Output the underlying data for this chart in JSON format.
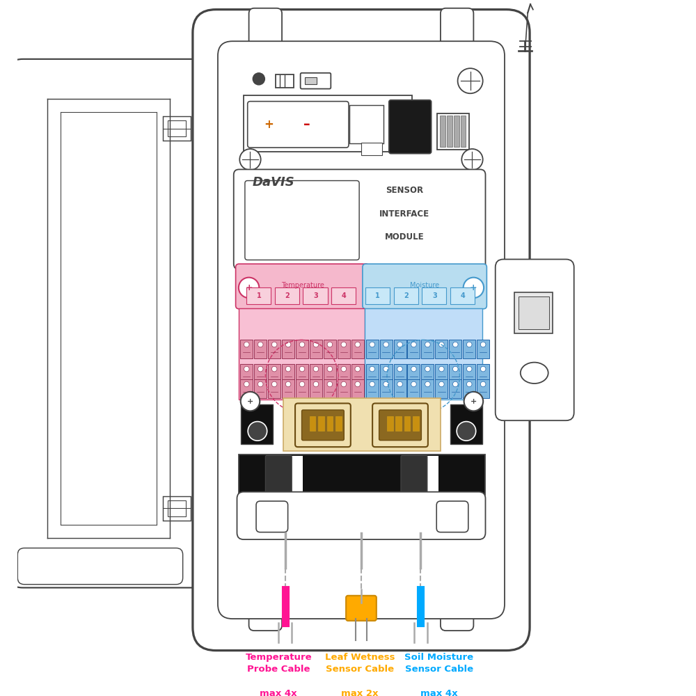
{
  "bg_color": "#ffffff",
  "outline_color": "#444444",
  "pink_color": "#f5b8cc",
  "blue_color": "#b8ddf0",
  "pink_dark": "#cc3366",
  "blue_dark": "#4499cc",
  "orange_color": "#ffaa00",
  "connector_bg": "#f0e0b0",
  "connector_dark": "#6b4c11",
  "label_temp": "Temperature",
  "label_moist": "Moisture",
  "numbers": [
    "1",
    "2",
    "3",
    "4"
  ],
  "sensor_text": [
    "SENSOR",
    "INTERFACE",
    "MODULE"
  ],
  "cable_labels": [
    "Temperature\nProbe Cable",
    "Leaf Wetness\nSensor Cable",
    "Soil Moisture\nSensor Cable"
  ],
  "cable_max": [
    "max 4x",
    "max 2x",
    "max 4x"
  ],
  "cable_colors": [
    "#ff1493",
    "#ffaa00",
    "#00aaff"
  ]
}
